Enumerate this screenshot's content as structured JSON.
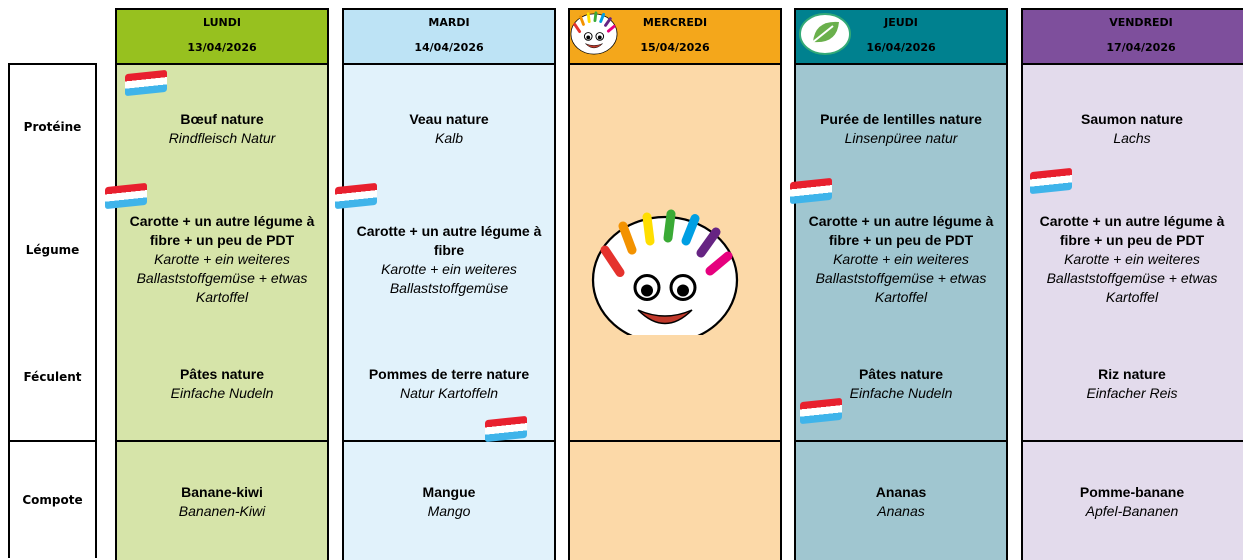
{
  "row_labels": [
    "Protéine",
    "Légume",
    "Féculent",
    "Compote"
  ],
  "days": [
    {
      "name": "LUNDI",
      "date": "13/04/2026",
      "items": [
        {
          "fr": "Bœuf nature",
          "de": "Rindfleisch Natur"
        },
        {
          "fr": "Carotte + un autre légume à fibre + un peu de PDT",
          "de": "Karotte + ein weiteres Ballaststoffgemüse + etwas Kartoffel"
        },
        {
          "fr": "Pâtes nature",
          "de": "Einfache Nudeln"
        },
        {
          "fr": "Banane-kiwi",
          "de": "Bananen-Kiwi"
        }
      ]
    },
    {
      "name": "MARDI",
      "date": "14/04/2026",
      "items": [
        {
          "fr": "Veau nature",
          "de": "Kalb"
        },
        {
          "fr": "Carotte + un autre légume à fibre",
          "de": "Karotte + ein weiteres Ballaststoffgemüse"
        },
        {
          "fr": "Pommes de terre nature",
          "de": "Natur Kartoffeln"
        },
        {
          "fr": "Mangue",
          "de": "Mango"
        }
      ]
    },
    {
      "name": "MERCREDI",
      "date": "15/04/2026",
      "items": []
    },
    {
      "name": "JEUDI",
      "date": "16/04/2026",
      "items": [
        {
          "fr": "Purée de lentilles nature",
          "de": "Linsenpüree natur"
        },
        {
          "fr": "Carotte + un autre légume à fibre + un peu de PDT",
          "de": "Karotte + ein weiteres Ballaststoffgemüse + etwas Kartoffel"
        },
        {
          "fr": "Pâtes nature",
          "de": "Einfache Nudeln"
        },
        {
          "fr": "Ananas",
          "de": "Ananas"
        }
      ]
    },
    {
      "name": "VENDREDI",
      "date": "17/04/2026",
      "items": [
        {
          "fr": "Saumon nature",
          "de": "Lachs"
        },
        {
          "fr": "Carotte + un autre légume à fibre + un peu de PDT",
          "de": "Karotte + ein weiteres Ballaststoffgemüse + etwas Kartoffel"
        },
        {
          "fr": "Riz nature",
          "de": "Einfacher Reis"
        },
        {
          "fr": "Pomme-banane",
          "de": "Apfel-Bananen"
        }
      ]
    }
  ]
}
